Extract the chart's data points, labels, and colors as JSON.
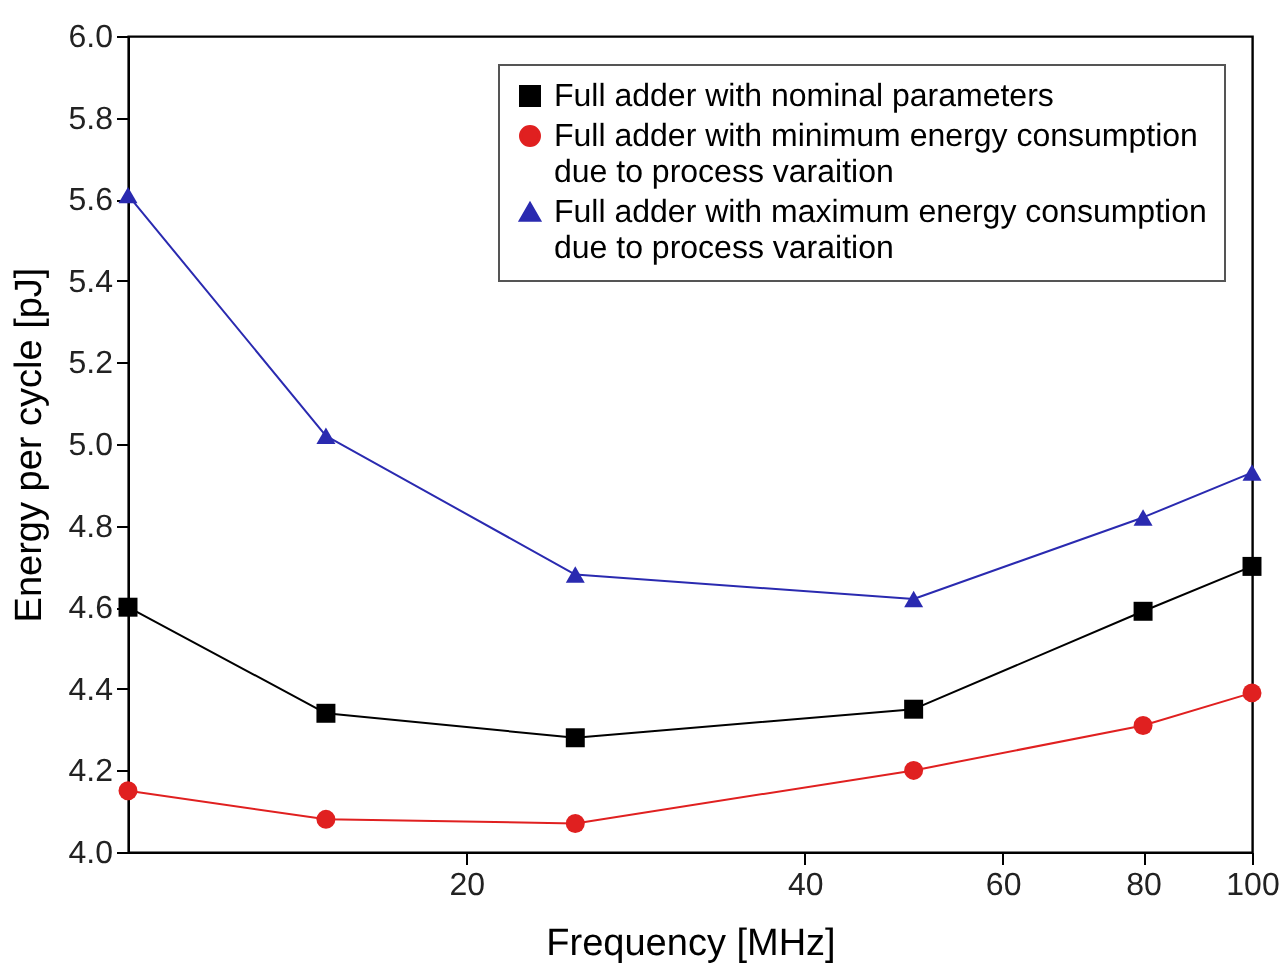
{
  "chart_data": {
    "type": "line",
    "xlabel": "Frequency [MHz]",
    "ylabel": "Energy per cycle [pJ]",
    "log": "x",
    "grid": false,
    "legend": "top right",
    "x": [
      10,
      15,
      25,
      50,
      80,
      100
    ],
    "xlim": [
      10,
      100
    ],
    "xticks": [
      20,
      40,
      60,
      80,
      100
    ],
    "ylim": [
      4.0,
      6.0
    ],
    "yticks": [
      {
        "value": 4,
        "label": "4.0"
      },
      4.2,
      4.4,
      4.6,
      4.8,
      {
        "value": 5,
        "label": "5.0"
      },
      5.2,
      5.4,
      5.6,
      5.8,
      {
        "value": 6,
        "label": "6.0"
      }
    ],
    "series": [
      {
        "name": "Full adder with nominal parameters",
        "color": "#000000",
        "marker": "square",
        "values": [
          4.6,
          4.34,
          4.28,
          4.35,
          4.59,
          4.7
        ]
      },
      {
        "name": "Full adder with minimum energy consumption due to process varaition",
        "color": "#e02020",
        "marker": "circle",
        "values": [
          4.15,
          4.08,
          4.07,
          4.2,
          4.31,
          4.39
        ]
      },
      {
        "name": "Full adder with maximum energy consumption due to process varaition",
        "color": "#2a2ab0",
        "marker": "triangle",
        "values": [
          5.61,
          5.02,
          4.68,
          4.62,
          4.82,
          4.93
        ]
      }
    ]
  }
}
